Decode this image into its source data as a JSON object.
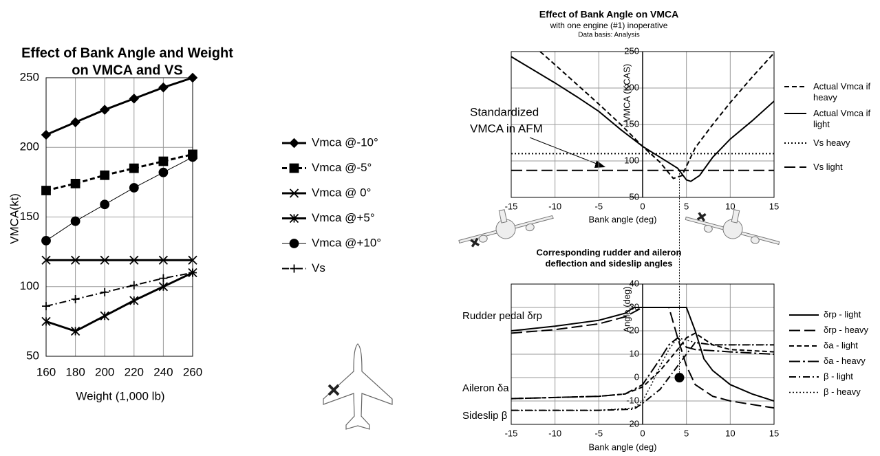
{
  "chart_data": [
    {
      "type": "line",
      "title": [
        "Effect of Bank Angle and Weight",
        "on VMCA and VS"
      ],
      "x_label": "Weight (1,000 lb)",
      "y_label": "VMCA(kt)",
      "x": [
        160,
        180,
        200,
        220,
        240,
        260
      ],
      "xlim": [
        160,
        260
      ],
      "xticks": [
        160,
        180,
        200,
        220,
        240,
        260
      ],
      "ylim": [
        50,
        250
      ],
      "yticks": [
        50,
        100,
        150,
        200,
        250
      ],
      "grid": true,
      "series": [
        {
          "name": "Vmca @-10°",
          "color": "#000000",
          "line_style": "solid",
          "width": 3,
          "marker": "diamond",
          "values": [
            209,
            218,
            227,
            235,
            243,
            250
          ]
        },
        {
          "name": "Vmca @-5°",
          "color": "#000000",
          "line_style": "dashed",
          "width": 3,
          "marker": "square",
          "values": [
            169,
            174,
            180,
            185,
            190,
            195
          ]
        },
        {
          "name": "Vmca @ 0°",
          "color": "#000000",
          "line_style": "solid",
          "width": 3,
          "marker": "x",
          "values": [
            119,
            119,
            119,
            119,
            119,
            119
          ]
        },
        {
          "name": "Vmca @+5°",
          "color": "#000000",
          "line_style": "solid",
          "width": 3,
          "marker": "asterisk",
          "values": [
            75,
            68,
            79,
            90,
            100,
            110
          ]
        },
        {
          "name": "Vmca @+10°",
          "color": "#000000",
          "line_style": "solid",
          "width": 1,
          "marker": "circle",
          "values": [
            133,
            147,
            159,
            171,
            182,
            193
          ]
        },
        {
          "name": "Vs",
          "color": "#000000",
          "line_style": "dashdot",
          "width": 2,
          "marker": "plus",
          "values": [
            86,
            91,
            96,
            101,
            106,
            110
          ]
        }
      ]
    },
    {
      "type": "line",
      "title": "Effect of Bank Angle on VMCA",
      "subtitle": [
        "with one engine (#1) inoperative",
        "Data basis: Analysis"
      ],
      "x_label": "Bank angle (deg)",
      "y_label": "VMCA (KCAS)",
      "annotations": [
        "Standardized",
        "VMCA in AFM"
      ],
      "xlim": [
        -15,
        15
      ],
      "xticks": [
        -15,
        -10,
        -5,
        0,
        5,
        10,
        15
      ],
      "ylim": [
        50,
        250
      ],
      "yticks": [
        50,
        100,
        150,
        200,
        250
      ],
      "grid": true,
      "series": [
        {
          "name": "Actual Vmca if heavy",
          "color": "#000000",
          "line_style": "dashed",
          "width": 2,
          "x": [
            -11.7,
            -10,
            -7.5,
            -5,
            -2.5,
            0,
            2,
            3.5,
            4.5,
            6,
            8,
            10,
            12.5,
            15
          ],
          "values": [
            250,
            232,
            205,
            178,
            150,
            120,
            98,
            76,
            80,
            118,
            150,
            180,
            215,
            248
          ]
        },
        {
          "name": "Actual Vmca if light",
          "color": "#000000",
          "line_style": "solid",
          "width": 2,
          "x": [
            -15,
            -12.5,
            -10,
            -7.5,
            -5,
            -2.5,
            0,
            2,
            4,
            5,
            5.5,
            6.5,
            8,
            10,
            12.5,
            15
          ],
          "values": [
            243,
            225,
            207,
            188,
            168,
            143,
            120,
            105,
            90,
            74,
            72,
            80,
            105,
            130,
            155,
            182
          ]
        },
        {
          "name": "Vs heavy",
          "color": "#000000",
          "line_style": "dotted",
          "width": 2,
          "x": [
            -15,
            15
          ],
          "values": [
            110,
            110
          ]
        },
        {
          "name": "Vs light",
          "color": "#000000",
          "line_style": "longdash",
          "width": 2,
          "x": [
            -15,
            15
          ],
          "values": [
            87,
            87
          ]
        }
      ]
    },
    {
      "type": "line",
      "title": [
        "Corresponding rudder and aileron",
        "deflection and sideslip angles"
      ],
      "x_label": "Bank angle (deg)",
      "y_label": "Angle (deg)",
      "annotations": [
        "Rudder pedal δrp",
        "Aileron δa",
        "Sideslip β"
      ],
      "xlim": [
        -15,
        15
      ],
      "xticks": [
        -15,
        -10,
        -5,
        0,
        5,
        10,
        15
      ],
      "ylim": [
        -20,
        40
      ],
      "yticks": [
        -20,
        -10,
        0,
        10,
        20,
        30,
        40
      ],
      "grid": true,
      "points": [
        {
          "x": 4.2,
          "y": 0
        }
      ],
      "series": [
        {
          "name": "δrp - light",
          "color": "#000000",
          "line_style": "solid",
          "width": 2,
          "x": [
            -15,
            -10,
            -5,
            -2,
            -1,
            5,
            6,
            7,
            8,
            10,
            12.5,
            15
          ],
          "values": [
            20,
            22,
            24.5,
            27.5,
            30,
            30,
            20,
            8,
            3,
            -3,
            -7,
            -10
          ]
        },
        {
          "name": "δrp - heavy",
          "color": "#000000",
          "line_style": "longdash",
          "width": 2,
          "x": [
            -15,
            -10,
            -5,
            -2,
            0,
            3,
            4,
            5,
            6,
            8,
            10,
            15
          ],
          "values": [
            19,
            20.5,
            23,
            26,
            30,
            30,
            17,
            5,
            -3,
            -8,
            -10,
            -13
          ]
        },
        {
          "name": "δa - light",
          "color": "#000000",
          "line_style": "dashed",
          "width": 2,
          "x": [
            -15,
            -10,
            -5,
            -2,
            0,
            2,
            4,
            5,
            6,
            8,
            10,
            15
          ],
          "values": [
            -9,
            -8.5,
            -8,
            -7,
            -4,
            3,
            12,
            17,
            19,
            14,
            12,
            11
          ]
        },
        {
          "name": "δa - heavy",
          "color": "#000000",
          "line_style": "longdashdot",
          "width": 2,
          "x": [
            -15,
            -10,
            -5,
            -2,
            0,
            2,
            3,
            4,
            5,
            6,
            8,
            10,
            15
          ],
          "values": [
            -9,
            -8.5,
            -8,
            -7,
            -3,
            8,
            14,
            17,
            13,
            12,
            11.5,
            11,
            10
          ]
        },
        {
          "name": "β - light",
          "color": "#000000",
          "line_style": "dashdot",
          "width": 2,
          "x": [
            -15,
            -10,
            -5,
            -1,
            0,
            2,
            4,
            5,
            6,
            8,
            10,
            15
          ],
          "values": [
            -14,
            -14,
            -14,
            -13.5,
            -11,
            -5,
            5,
            10,
            15,
            14,
            14,
            14
          ]
        },
        {
          "name": "β - heavy",
          "color": "#000000",
          "line_style": "dotted",
          "width": 1.5,
          "x": [
            -15,
            -10,
            -5,
            -1,
            0,
            1,
            2,
            3,
            4,
            6,
            8,
            15
          ],
          "values": [
            -14,
            -14,
            -14,
            -13,
            -10,
            -3,
            5,
            12,
            17,
            15,
            14,
            14
          ]
        }
      ]
    }
  ]
}
